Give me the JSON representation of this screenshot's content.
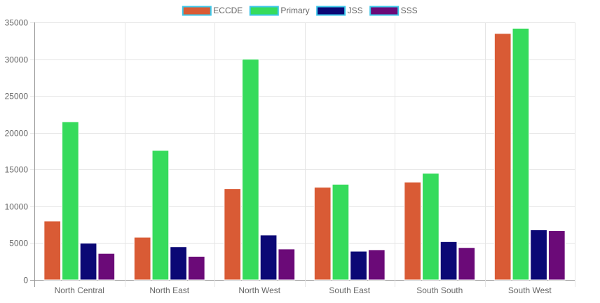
{
  "chart_data": {
    "type": "bar",
    "title": "",
    "xlabel": "",
    "ylabel": "",
    "categories": [
      "North Central",
      "North East",
      "North West",
      "South East",
      "South South",
      "South West"
    ],
    "ylim": [
      0,
      35000
    ],
    "yticks": [
      0,
      5000,
      10000,
      15000,
      20000,
      25000,
      30000,
      35000
    ],
    "ytick_labels": [
      "0",
      "5000",
      "10000",
      "15000",
      "20000",
      "25000",
      "30000",
      "35000"
    ],
    "grid": true,
    "legend_position": "top",
    "series": [
      {
        "name": "ECCDE",
        "color": "#d95b35",
        "border": "#ffffff",
        "legend_border": "#3bc6e8",
        "values": [
          8000,
          5800,
          12400,
          12600,
          13300,
          33500
        ]
      },
      {
        "name": "Primary",
        "color": "#36db5c",
        "border": "#ffffff",
        "legend_border": "#3bc6e8",
        "values": [
          21500,
          17600,
          30000,
          13000,
          14500,
          34200
        ]
      },
      {
        "name": "JSS",
        "color": "#0b0875",
        "border": "#ffffff",
        "legend_border": "#3bc6e8",
        "values": [
          5000,
          4500,
          6100,
          3900,
          5200,
          6800
        ]
      },
      {
        "name": "SSS",
        "color": "#6b0a78",
        "border": "#ffffff",
        "legend_border": "#3bc6e8",
        "values": [
          3600,
          3200,
          4200,
          4100,
          4400,
          6700
        ]
      }
    ]
  }
}
